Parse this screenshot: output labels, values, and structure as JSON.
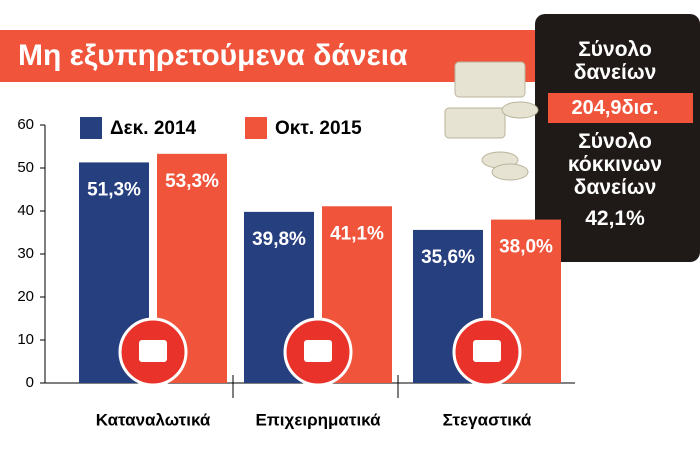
{
  "chart_data": {
    "type": "bar",
    "title": "Μη εξυπηρετούμενα δάνεια",
    "categories": [
      "Καταναλωτικά",
      "Επιχειρηματικά",
      "Στεγαστικά"
    ],
    "series": [
      {
        "name": "Δεκ. 2014",
        "color": "#263f7e",
        "values": [
          51.3,
          39.8,
          35.6
        ],
        "value_labels": [
          "51,3%",
          "39,8%",
          "35,6%"
        ]
      },
      {
        "name": "Οκτ. 2015",
        "color": "#f0553c",
        "values": [
          53.3,
          41.1,
          38.0
        ],
        "value_labels": [
          "53,3%",
          "41,1%",
          "38,0%"
        ]
      }
    ],
    "ylim": [
      0,
      60
    ],
    "yticks": [
      0,
      10,
      20,
      30,
      40,
      50,
      60
    ],
    "grid": false,
    "annotations": [
      "Σύνολο δανείων",
      "204,9δισ.",
      "Σύνολο κόκκινων δανείων",
      "42,1%"
    ]
  }
}
